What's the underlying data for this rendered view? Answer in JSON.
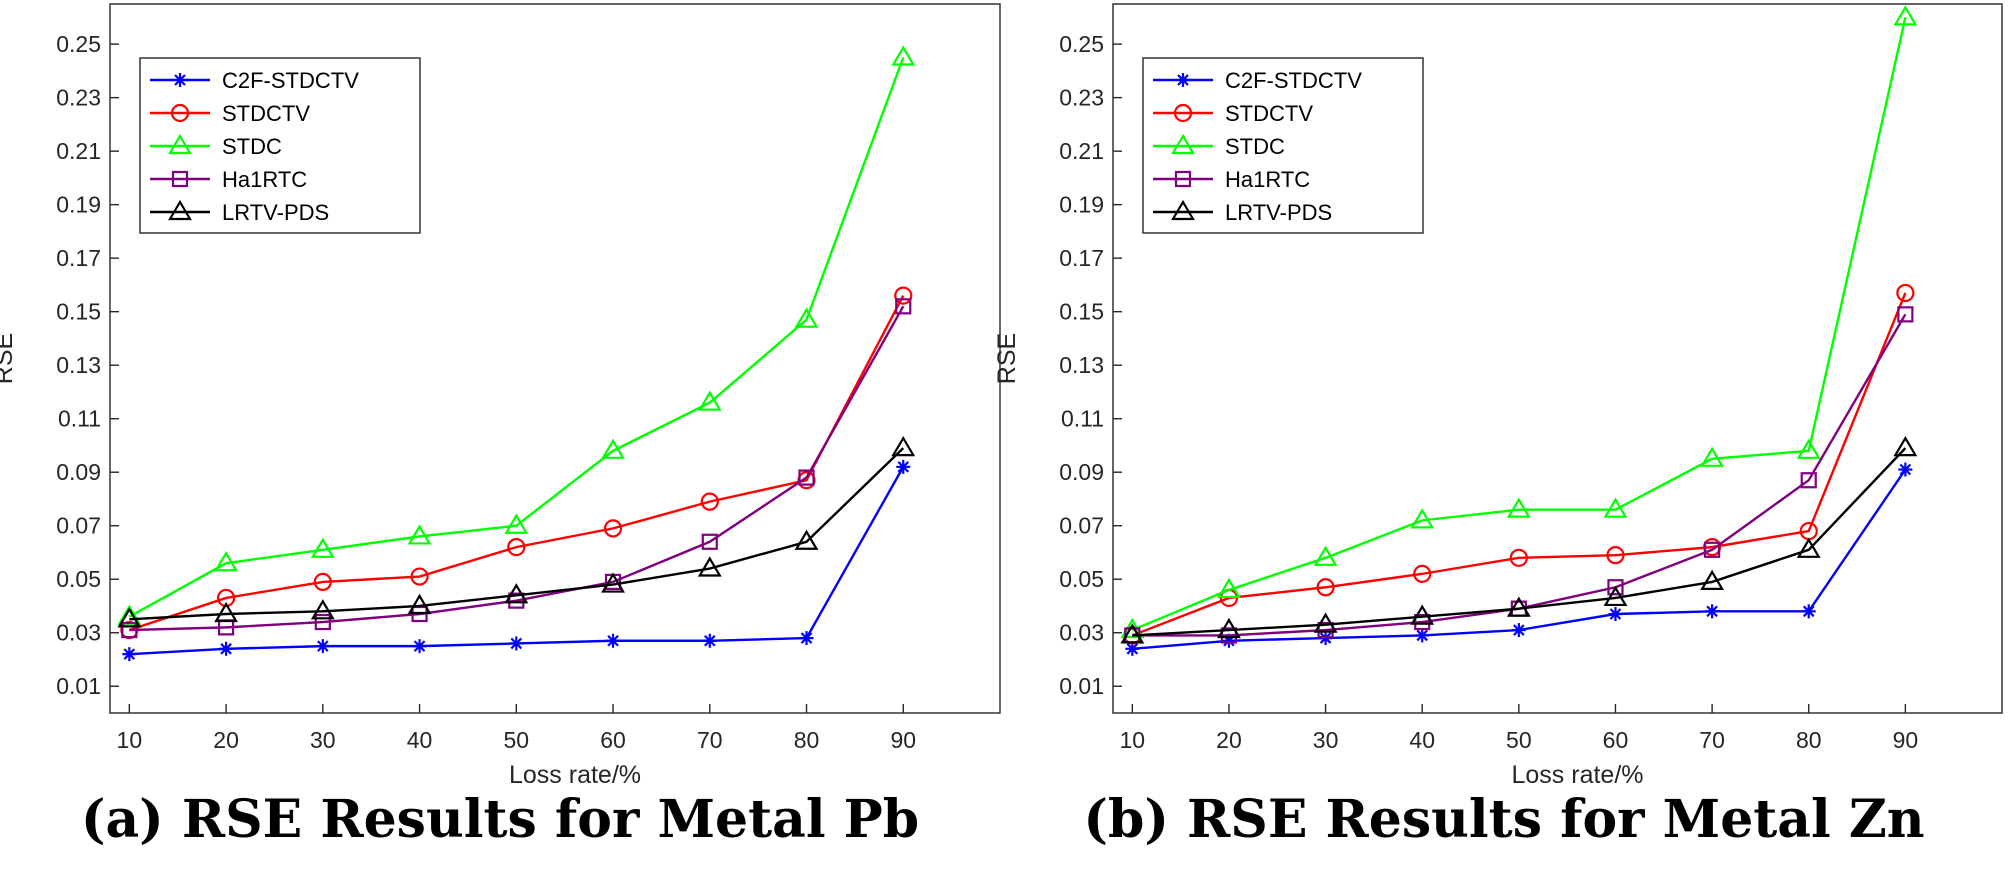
{
  "chart_data": [
    {
      "type": "line",
      "caption": "(a) RSE Results for Metal Pb",
      "xlabel": "Loss rate/%",
      "ylabel": "RSE",
      "x": [
        10,
        20,
        30,
        40,
        50,
        60,
        70,
        80,
        90
      ],
      "xlim": [
        8,
        100
      ],
      "ylim": [
        0,
        0.265
      ],
      "xticks": [
        "10",
        "20",
        "30",
        "40",
        "50",
        "60",
        "70",
        "80",
        "90"
      ],
      "yticks": [
        "0.01",
        "0.03",
        "0.05",
        "0.07",
        "0.09",
        "0.11",
        "0.13",
        "0.15",
        "0.17",
        "0.19",
        "0.21",
        "0.23",
        "0.25"
      ],
      "legend_position": "top-left",
      "grid": false,
      "series": [
        {
          "name": "C2F-STDCTV",
          "color": "#0000ff",
          "marker": "star",
          "values": [
            0.022,
            0.024,
            0.025,
            0.025,
            0.026,
            0.027,
            0.027,
            0.028,
            0.092
          ]
        },
        {
          "name": "STDCTV",
          "color": "#ff0000",
          "marker": "circle",
          "values": [
            0.031,
            0.043,
            0.049,
            0.051,
            0.062,
            0.069,
            0.079,
            0.087,
            0.156
          ]
        },
        {
          "name": "STDC",
          "color": "#00ff00",
          "marker": "triangle",
          "values": [
            0.036,
            0.056,
            0.061,
            0.066,
            0.07,
            0.098,
            0.116,
            0.147,
            0.245
          ]
        },
        {
          "name": "Ha1RTC",
          "color": "#800080",
          "marker": "square",
          "values": [
            0.031,
            0.032,
            0.034,
            0.037,
            0.042,
            0.049,
            0.064,
            0.088,
            0.152
          ]
        },
        {
          "name": "LRTV-PDS",
          "color": "#000000",
          "marker": "triangle",
          "values": [
            0.035,
            0.037,
            0.038,
            0.04,
            0.044,
            0.048,
            0.054,
            0.064,
            0.099
          ]
        }
      ]
    },
    {
      "type": "line",
      "caption": "(b) RSE Results for Metal Zn",
      "xlabel": "Loss rate/%",
      "ylabel": "RSE",
      "x": [
        10,
        20,
        30,
        40,
        50,
        60,
        70,
        80,
        90
      ],
      "xlim": [
        8,
        100
      ],
      "ylim": [
        0,
        0.265
      ],
      "xticks": [
        "10",
        "20",
        "30",
        "40",
        "50",
        "60",
        "70",
        "80",
        "90"
      ],
      "yticks": [
        "0.01",
        "0.03",
        "0.05",
        "0.07",
        "0.09",
        "0.11",
        "0.13",
        "0.15",
        "0.17",
        "0.19",
        "0.21",
        "0.23",
        "0.25"
      ],
      "legend_position": "top-left",
      "grid": false,
      "series": [
        {
          "name": "C2F-STDCTV",
          "color": "#0000ff",
          "marker": "star",
          "values": [
            0.024,
            0.027,
            0.028,
            0.029,
            0.031,
            0.037,
            0.038,
            0.038,
            0.091
          ]
        },
        {
          "name": "STDCTV",
          "color": "#ff0000",
          "marker": "circle",
          "values": [
            0.029,
            0.043,
            0.047,
            0.052,
            0.058,
            0.059,
            0.062,
            0.068,
            0.157
          ]
        },
        {
          "name": "STDC",
          "color": "#00ff00",
          "marker": "triangle",
          "values": [
            0.031,
            0.046,
            0.058,
            0.072,
            0.076,
            0.076,
            0.095,
            0.098,
            0.26
          ]
        },
        {
          "name": "Ha1RTC",
          "color": "#800080",
          "marker": "square",
          "values": [
            0.029,
            0.029,
            0.031,
            0.034,
            0.039,
            0.047,
            0.061,
            0.087,
            0.149
          ]
        },
        {
          "name": "LRTV-PDS",
          "color": "#000000",
          "marker": "triangle",
          "values": [
            0.029,
            0.031,
            0.033,
            0.036,
            0.039,
            0.043,
            0.049,
            0.061,
            0.099
          ]
        }
      ]
    }
  ]
}
